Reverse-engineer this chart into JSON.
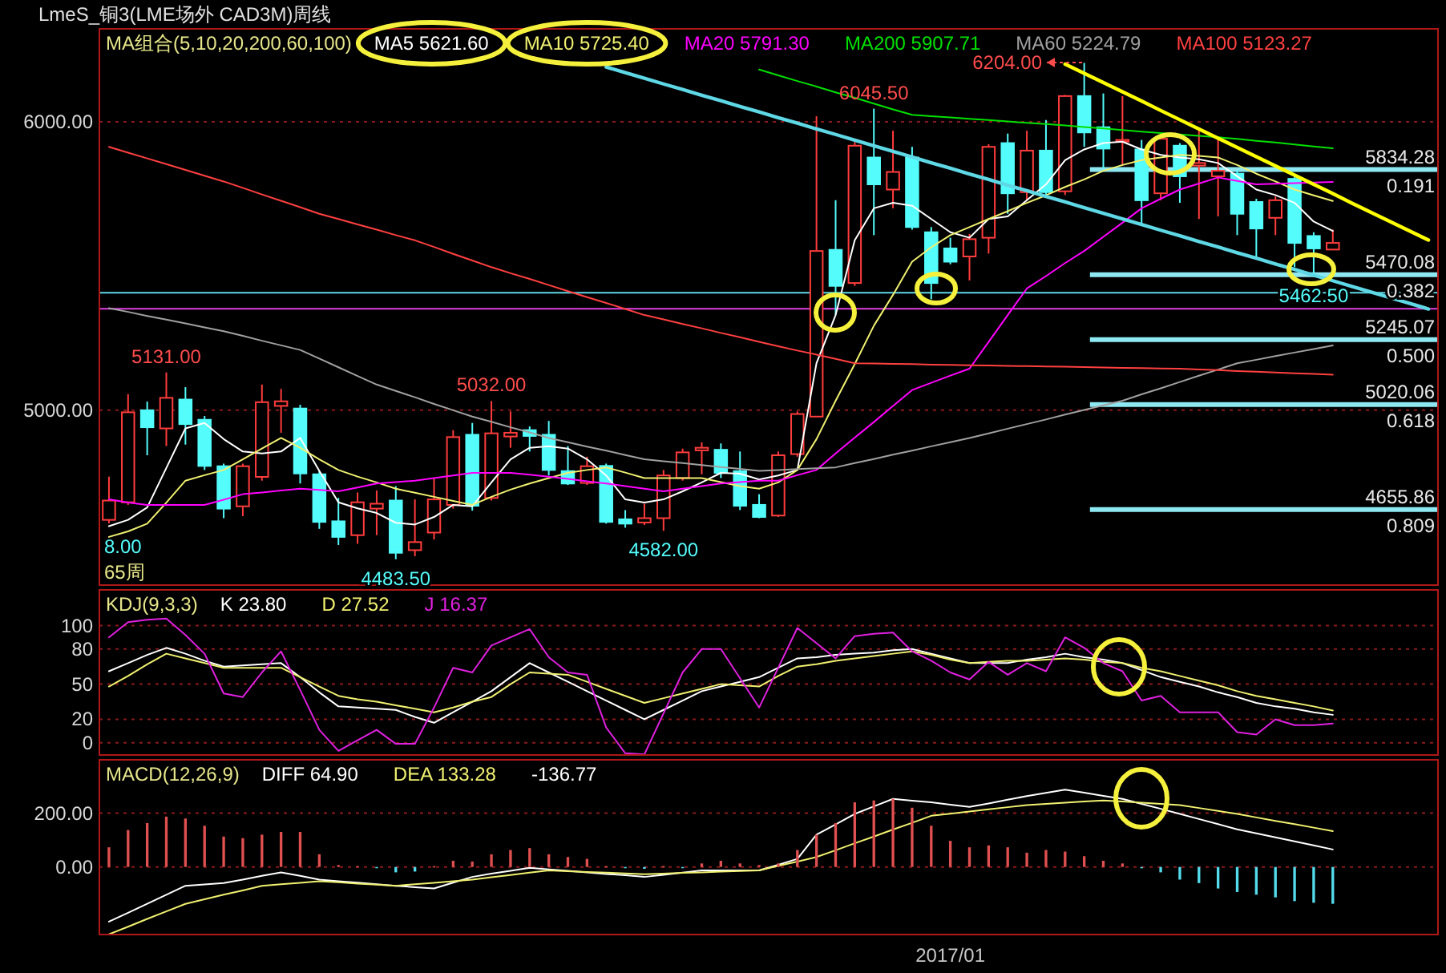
{
  "chart_data": [
    {
      "type": "candlestick",
      "title": "LmeS_铜3(LME场外 CAD3M)周线",
      "legend_title": "MA组合(5,10,20,200,60,100)",
      "grid": "y",
      "tick_labels": "y",
      "ylim": [
        4394,
        6322
      ],
      "yticks": [
        {
          "value": 5000,
          "label": "5000.00"
        },
        {
          "value": 6000,
          "label": "6000.00"
        }
      ],
      "categories": [
        null,
        null,
        null,
        null,
        null,
        null,
        null,
        null,
        null,
        null,
        null,
        null,
        null,
        null,
        null,
        null,
        null,
        null,
        null,
        null,
        null,
        null,
        null,
        null,
        null,
        null,
        null,
        null,
        null,
        null,
        null,
        null,
        null,
        null,
        null,
        null,
        null,
        null,
        null,
        null,
        null,
        null,
        null,
        null,
        null,
        null,
        null,
        null,
        null,
        null,
        null,
        null,
        null,
        null,
        null,
        null,
        null,
        null,
        null,
        null,
        null,
        null,
        null,
        null,
        null,
        null,
        null,
        null,
        null,
        null
      ],
      "ohlc": [
        [
          4620,
          4770,
          4608,
          4687
        ],
        [
          4681,
          5056,
          4672,
          4993
        ],
        [
          5000,
          5030,
          4844,
          4941
        ],
        [
          4937,
          5131,
          4876,
          5043
        ],
        [
          5037,
          5080,
          4881,
          4952
        ],
        [
          4967,
          4980,
          4793,
          4807
        ],
        [
          4806,
          4815,
          4626,
          4659
        ],
        [
          4667,
          4815,
          4633,
          4806
        ],
        [
          4769,
          5089,
          4756,
          5028
        ],
        [
          5015,
          5074,
          4922,
          5031
        ],
        [
          5006,
          5019,
          4746,
          4781
        ],
        [
          4778,
          4789,
          4589,
          4613
        ],
        [
          4615,
          4696,
          4533,
          4561
        ],
        [
          4567,
          4715,
          4537,
          4681
        ],
        [
          4659,
          4722,
          4567,
          4676
        ],
        [
          4687,
          4737,
          4483.5,
          4506
        ],
        [
          4515,
          4691,
          4494,
          4543
        ],
        [
          4576,
          4765,
          4552,
          4691
        ],
        [
          4672,
          4931,
          4659,
          4907
        ],
        [
          4915,
          4956,
          4652,
          4669
        ],
        [
          4696,
          5032,
          4687,
          4920
        ],
        [
          4909,
          4996,
          4870,
          4922
        ],
        [
          4931,
          4944,
          4857,
          4911
        ],
        [
          4915,
          4963,
          4774,
          4793
        ],
        [
          4789,
          4876,
          4741,
          4746
        ],
        [
          4748,
          4839,
          4741,
          4806
        ],
        [
          4807,
          4815,
          4607,
          4613
        ],
        [
          4622,
          4654,
          4593,
          4607
        ],
        [
          4611,
          4676,
          4602,
          4626
        ],
        [
          4626,
          4793,
          4582,
          4774
        ],
        [
          4765,
          4867,
          4756,
          4854
        ],
        [
          4861,
          4889,
          4778,
          4870
        ],
        [
          4863,
          4885,
          4765,
          4783
        ],
        [
          4789,
          4857,
          4654,
          4669
        ],
        [
          4672,
          4709,
          4626,
          4630
        ],
        [
          4635,
          4857,
          4630,
          4844
        ],
        [
          4848,
          4996,
          4839,
          4987
        ],
        [
          4978,
          6019,
          4978,
          5552
        ],
        [
          5556,
          5728,
          5330,
          5431
        ],
        [
          5441,
          5930,
          5431,
          5917
        ],
        [
          5876,
          6045.5,
          5607,
          5783
        ],
        [
          5765,
          5969,
          5700,
          5826
        ],
        [
          5876,
          5913,
          5626,
          5635
        ],
        [
          5617,
          5635,
          5385,
          5441
        ],
        [
          5561,
          5598,
          5506,
          5515
        ],
        [
          5533,
          5611,
          5450,
          5593
        ],
        [
          5598,
          5922,
          5543,
          5913
        ],
        [
          5926,
          5959,
          5681,
          5752
        ],
        [
          5756,
          5969,
          5728,
          5900
        ],
        [
          5900,
          6006,
          5746,
          5756
        ],
        [
          5759,
          6093,
          5746,
          6089
        ],
        [
          6089,
          6204,
          5913,
          5963
        ],
        [
          5981,
          6098,
          5839,
          5907
        ],
        [
          5931,
          6089,
          5848,
          5937
        ],
        [
          5904,
          5937,
          5644,
          5728
        ],
        [
          5752,
          5950,
          5728,
          5941
        ],
        [
          5917,
          5926,
          5719,
          5811
        ],
        [
          5848,
          5969,
          5663,
          5857
        ],
        [
          5811,
          5941,
          5672,
          5830
        ],
        [
          5820,
          5833,
          5607,
          5681
        ],
        [
          5722,
          5733,
          5533,
          5630
        ],
        [
          5667,
          5741,
          5607,
          5728
        ],
        [
          5802,
          5811,
          5496,
          5580
        ],
        [
          5604,
          5617,
          5462.5,
          5561
        ],
        [
          5557,
          5626,
          5556,
          5580
        ],
        null,
        null,
        null,
        null,
        null
      ],
      "colors": [
        "#ff3c3c",
        "#ff3c3c",
        "#54fcfc",
        "#ff3c3c",
        "#54fcfc",
        "#54fcfc",
        "#54fcfc",
        "#ff3c3c",
        "#ff3c3c",
        "#ff3c3c",
        "#54fcfc",
        "#54fcfc",
        "#54fcfc",
        "#ff3c3c",
        "#ff3c3c",
        "#54fcfc",
        "#ff3c3c",
        "#ff3c3c",
        "#ff3c3c",
        "#54fcfc",
        "#ff3c3c",
        "#ff3c3c",
        "#54fcfc",
        "#54fcfc",
        "#54fcfc",
        "#ff3c3c",
        "#54fcfc",
        "#54fcfc",
        "#ff3c3c",
        "#ff3c3c",
        "#ff3c3c",
        "#ff3c3c",
        "#54fcfc",
        "#54fcfc",
        "#54fcfc",
        "#ff3c3c",
        "#ff3c3c",
        "#ff3c3c",
        "#54fcfc",
        "#ff3c3c",
        "#54fcfc",
        "#ff3c3c",
        "#54fcfc",
        "#54fcfc",
        "#54fcfc",
        "#ff3c3c",
        "#ff3c3c",
        "#54fcfc",
        "#ff3c3c",
        "#54fcfc",
        "#ff3c3c",
        "#54fcfc",
        "#54fcfc",
        "#ff3c3c",
        "#54fcfc",
        "#ff3c3c",
        "#54fcfc",
        "#ff3c3c",
        "#ff3c3c",
        "#54fcfc",
        "#54fcfc",
        "#ff3c3c",
        "#54fcfc",
        "#54fcfc",
        "#ff3c3c",
        null,
        null,
        null,
        null,
        null
      ],
      "series": [
        {
          "type": "line",
          "name": "MA5 5621.60",
          "color": "#ffffff",
          "values": [
            4598,
            4620,
            4663,
            4800,
            4937,
            4956,
            4900,
            4857,
            4850,
            4857,
            4904,
            4790,
            4681,
            4660,
            4644,
            4610,
            4604,
            4630,
            4672,
            4667,
            4750,
            4830,
            4870,
            4875,
            4867,
            4830,
            4774,
            4691,
            4680,
            4691,
            4719,
            4750,
            4783,
            4780,
            4760,
            4774,
            4793,
            5163,
            5330,
            5589,
            5700,
            5719,
            5709,
            5663,
            5617,
            5598,
            5663,
            5672,
            5728,
            5783,
            5867,
            5904,
            5926,
            5931,
            5904,
            5885,
            5876,
            5870,
            5857,
            5811,
            5765,
            5746,
            5719,
            5654,
            5621.6,
            null,
            null,
            null,
            null,
            null
          ]
        },
        {
          "type": "line",
          "name": "MA10 5725.40",
          "color": "#f0f070",
          "values": [
            4561,
            4580,
            4607,
            4680,
            4756,
            4775,
            4793,
            4830,
            4867,
            4904,
            4870,
            4830,
            4793,
            4770,
            4750,
            4728,
            4714,
            4700,
            4686,
            4672,
            4700,
            4725,
            4746,
            4765,
            4783,
            4793,
            4802,
            4784,
            4765,
            4765,
            4765,
            4765,
            4751,
            4737,
            4728,
            4750,
            4793,
            4900,
            5033,
            5160,
            5293,
            5400,
            5515,
            5565,
            5607,
            5635,
            5663,
            5690,
            5719,
            5745,
            5774,
            5800,
            5830,
            5850,
            5867,
            5876,
            5885,
            5882,
            5876,
            5850,
            5820,
            5793,
            5765,
            5745,
            5725.4,
            null,
            null,
            null,
            null,
            null
          ]
        },
        {
          "type": "line",
          "name": "MA20 5791.30",
          "color": "#ff00ff",
          "values": [
            4691,
            4680,
            4672,
            4672,
            4672,
            4672,
            4690,
            4709,
            4715,
            4722,
            4728,
            4724,
            4719,
            4732,
            4746,
            4751,
            4756,
            4765,
            4774,
            4783,
            4783,
            4783,
            4777,
            4770,
            4762,
            4754,
            4746,
            4737,
            4728,
            4719,
            4728,
            4737,
            4746,
            4751,
            4756,
            4756,
            4775,
            4793,
            4850,
            4905,
            4959,
            5015,
            5070,
            5095,
            5120,
            5144,
            5237,
            5330,
            5422,
            5465,
            5510,
            5552,
            5601,
            5650,
            5700,
            5733,
            5765,
            5786,
            5807,
            5795,
            5783,
            5785,
            5787,
            5789,
            5791.3,
            null,
            null,
            null,
            null,
            null
          ]
        },
        {
          "type": "line",
          "name": "MA200 5907.71",
          "color": "#00e000",
          "values": [
            null,
            null,
            null,
            null,
            null,
            null,
            null,
            null,
            null,
            null,
            null,
            null,
            null,
            null,
            null,
            null,
            null,
            null,
            null,
            null,
            null,
            null,
            null,
            null,
            null,
            null,
            null,
            null,
            null,
            null,
            null,
            null,
            null,
            null,
            6181,
            6161,
            6141,
            6122,
            6102,
            6083,
            6063,
            6043,
            6024,
            6019,
            6015,
            6010,
            6006,
            6001,
            5996,
            5992,
            5987,
            5982,
            5977,
            5971,
            5966,
            5961,
            5956,
            5951,
            5946,
            5941,
            5934,
            5928,
            5921,
            5914,
            5907.71,
            null,
            null,
            null,
            null,
            null
          ]
        },
        {
          "type": "line",
          "name": "MA60 5224.79",
          "color": "#a0a0a0",
          "values": [
            5354,
            5341,
            5327,
            5314,
            5301,
            5287,
            5274,
            5258,
            5241,
            5225,
            5209,
            5179,
            5149,
            5119,
            5089,
            5067,
            5045,
            5022,
            5000,
            4978,
            4960,
            4941,
            4923,
            4904,
            4889,
            4874,
            4860,
            4845,
            4830,
            4823,
            4817,
            4810,
            4803,
            4797,
            4790,
            4793,
            4796,
            4799,
            4802,
            4817,
            4831,
            4846,
            4860,
            4875,
            4889,
            4904,
            4920,
            4936,
            4952,
            4968,
            4985,
            5001,
            5017,
            5033,
            5055,
            5076,
            5098,
            5120,
            5141,
            5163,
            5175,
            5188,
            5200,
            5212,
            5224.79,
            null,
            null,
            null,
            null,
            null
          ]
        },
        {
          "type": "line",
          "name": "MA100 5123.27",
          "color": "#ff4040",
          "values": [
            5913,
            5893,
            5873,
            5853,
            5833,
            5813,
            5793,
            5771,
            5748,
            5726,
            5704,
            5681,
            5663,
            5644,
            5626,
            5607,
            5589,
            5566,
            5542,
            5519,
            5496,
            5475,
            5455,
            5434,
            5413,
            5392,
            5372,
            5351,
            5330,
            5315,
            5299,
            5284,
            5268,
            5253,
            5237,
            5222,
            5207,
            5193,
            5178,
            5163,
            5162,
            5161,
            5160,
            5158,
            5157,
            5156,
            5155,
            5154,
            5153,
            5152,
            5151,
            5150,
            5148,
            5147,
            5146,
            5145,
            5144,
            5141,
            5139,
            5136,
            5134,
            5131,
            5128,
            5126,
            5123.27,
            null,
            null,
            null,
            null,
            null
          ]
        },
        {
          "type": "line",
          "color": "#ffff00",
          "values": [
            null,
            null,
            null,
            null,
            null,
            null,
            null,
            null,
            null,
            null,
            null,
            null,
            null,
            null,
            null,
            null,
            null,
            null,
            null,
            null,
            null,
            null,
            null,
            null,
            null,
            null,
            null,
            null,
            null,
            null,
            null,
            null,
            null,
            null,
            null,
            null,
            null,
            null,
            null,
            null,
            null,
            null,
            null,
            null,
            null,
            null,
            null,
            null,
            null,
            null,
            6200,
            6168,
            6136,
            6104,
            6072,
            6039,
            6007,
            5975,
            5943,
            5911,
            5879,
            5847,
            5815,
            5783,
            5751,
            5718,
            5686,
            5654,
            5622,
            5590
          ]
        },
        {
          "type": "line",
          "color": "#5fd8e6",
          "values": [
            null,
            null,
            null,
            null,
            null,
            null,
            null,
            null,
            null,
            null,
            null,
            null,
            null,
            null,
            null,
            null,
            null,
            null,
            null,
            null,
            null,
            null,
            null,
            null,
            null,
            null,
            6190,
            6170,
            6151,
            6131,
            6112,
            6092,
            6073,
            6053,
            6034,
            6014,
            5995,
            5975,
            5956,
            5936,
            5917,
            5897,
            5878,
            5858,
            5839,
            5819,
            5800,
            5780,
            5761,
            5741,
            5722,
            5702,
            5683,
            5663,
            5644,
            5624,
            5605,
            5585,
            5566,
            5546,
            5527,
            5507,
            5488,
            5468,
            5449,
            5429,
            5410,
            5390,
            5371,
            5351
          ]
        }
      ],
      "ref_lines": [
        {
          "axis": "y",
          "value": 5407,
          "color": "#5fd8e6"
        },
        {
          "axis": "y",
          "value": 5352,
          "color": "#e040e0"
        },
        {
          "axis": "y",
          "value": 5834.28,
          "label": "5834.28",
          "color": "#8ee8f2"
        },
        {
          "axis": "y",
          "value": 5470.08,
          "label": "5470.08",
          "color": "#8ee8f2"
        },
        {
          "axis": "y",
          "value": 5245.07,
          "label": "5245.07",
          "color": "#8ee8f2"
        },
        {
          "axis": "y",
          "value": 5020.06,
          "label": "5020.06",
          "color": "#8ee8f2"
        },
        {
          "axis": "y",
          "value": 4655.86,
          "label": "4655.86",
          "color": "#8ee8f2"
        }
      ],
      "annotations": [
        {
          "text": "5131.00",
          "y": 5131
        },
        {
          "text": "5032.00",
          "y": 5032
        },
        {
          "text": "4483.50",
          "y": 4483.5
        },
        {
          "text": "4582.00",
          "y": 4582
        },
        {
          "text": "6045.50",
          "y": 6045.5
        },
        {
          "text": "5462.50",
          "y": 5462.5
        },
        {
          "text": "0.191",
          "y": 5834.28
        },
        {
          "text": "0.382",
          "y": 5470.08
        },
        {
          "text": "0.500",
          "y": 5245.07
        },
        {
          "text": "0.618",
          "y": 5020.06
        },
        {
          "text": "0.809",
          "y": 4655.86
        },
        "6204.00",
        "8.00",
        "65周"
      ]
    },
    {
      "type": "line",
      "legend_title": "KDJ(9,3,3)",
      "grid": "y",
      "tick_labels": "y",
      "ylim": [
        -10.5,
        130.5
      ],
      "yticks": [
        0,
        20,
        50,
        80,
        100
      ],
      "categories": [
        null,
        null,
        null,
        null,
        null,
        null,
        null,
        null,
        null,
        null,
        null,
        null,
        null,
        null,
        null,
        null,
        null,
        null,
        null,
        null,
        null,
        null,
        null,
        null,
        null,
        null,
        null,
        null,
        null,
        null,
        null,
        null,
        null,
        null,
        null,
        null,
        null,
        null,
        null,
        null,
        null,
        null,
        null,
        null,
        null,
        null,
        null,
        null,
        null,
        null,
        null,
        null,
        null,
        null,
        null,
        null,
        null,
        null,
        null,
        null,
        null,
        null,
        null,
        null,
        null,
        null,
        null,
        null,
        null,
        null
      ],
      "series": [
        {
          "type": "line",
          "name": "K 23.80",
          "color": "#ffffff",
          "values": [
            61,
            68,
            75,
            81,
            76,
            70,
            65,
            66,
            67,
            68,
            56,
            43,
            31,
            30,
            29,
            28,
            22,
            17,
            26,
            35,
            44,
            56,
            68,
            60,
            52,
            44,
            36,
            28,
            20,
            28,
            36,
            44,
            48,
            52,
            56,
            64,
            72,
            73,
            75,
            76,
            77,
            79,
            80,
            76,
            72,
            68,
            68,
            68,
            71,
            73,
            76,
            73,
            71,
            68,
            62,
            56,
            52,
            48,
            43,
            39,
            34,
            31,
            29,
            26,
            23.8,
            null,
            null,
            null,
            null,
            null
          ]
        },
        {
          "type": "line",
          "name": "D 27.52",
          "color": "#f0f070",
          "values": [
            48,
            57,
            67,
            76,
            72,
            68,
            64,
            64,
            64,
            64,
            56,
            48,
            40,
            37,
            35,
            32,
            29,
            26,
            30,
            35,
            39,
            50,
            60,
            59,
            58,
            52,
            46,
            40,
            34,
            38,
            42,
            46,
            50,
            49,
            48,
            57,
            65,
            67,
            70,
            72,
            74,
            76,
            78,
            75,
            71,
            68,
            69,
            70,
            70,
            71,
            72,
            71,
            69,
            68,
            64,
            61,
            57,
            53,
            49,
            44,
            40,
            37,
            34,
            31,
            27.52,
            null,
            null,
            null,
            null,
            null
          ]
        },
        {
          "type": "line",
          "name": "J 16.37",
          "color": "#e020e0",
          "values": [
            90,
            103,
            105,
            106,
            92,
            76,
            42,
            39,
            60,
            78,
            45,
            11,
            -7,
            2,
            11,
            -1,
            -1,
            30,
            64,
            60,
            83,
            90,
            97,
            73,
            60,
            58,
            13,
            -9,
            -10,
            25,
            60,
            80,
            80,
            55,
            30,
            64,
            98,
            85,
            72,
            91,
            93,
            94,
            78,
            70,
            60,
            54,
            69,
            58,
            68,
            61,
            90,
            81,
            68,
            61,
            36,
            40,
            26,
            26,
            26,
            9,
            7,
            20,
            15,
            15,
            16.37,
            null,
            null,
            null,
            null,
            null
          ]
        }
      ]
    },
    {
      "type": "line",
      "legend_title": "MACD(12,26,9)",
      "grid": "y",
      "ylim": [
        -251,
        398
      ],
      "yticks": [
        {
          "value": 0,
          "label": "0.00"
        },
        {
          "value": 200,
          "label": "200.00"
        }
      ],
      "categories": [
        null,
        null,
        null,
        null,
        null,
        null,
        null,
        null,
        null,
        null,
        null,
        null,
        null,
        null,
        null,
        null,
        null,
        null,
        null,
        null,
        null,
        null,
        null,
        null,
        null,
        null,
        null,
        null,
        null,
        null,
        null,
        null,
        null,
        null,
        null,
        null,
        null,
        null,
        null,
        null,
        null,
        null,
        null,
        null,
        "2017/01",
        null,
        null,
        null,
        null,
        null,
        null,
        null,
        null,
        null,
        null,
        null,
        null,
        null,
        null,
        null,
        null,
        null,
        null,
        null,
        null,
        null,
        null,
        null,
        null,
        null
      ],
      "series": [
        {
          "type": "line",
          "name": "DIFF 64.90",
          "color": "#ffffff",
          "values": [
            -203,
            -170,
            -137,
            -103,
            -70,
            -65,
            -60,
            -47,
            -33,
            -20,
            -33,
            -47,
            -53,
            -58,
            -64,
            -70,
            -75,
            -80,
            -58,
            -37,
            -25,
            -14,
            -3,
            -9,
            -14,
            -20,
            -26,
            -31,
            -37,
            -29,
            -21,
            -13,
            -13,
            -13,
            -13,
            8,
            30,
            120,
            158,
            197,
            225,
            253,
            246,
            240,
            231,
            223,
            236,
            250,
            263,
            275,
            287,
            276,
            264,
            253,
            234,
            216,
            197,
            178,
            159,
            140,
            125,
            110,
            95,
            80,
            64.9,
            null,
            null,
            null,
            null,
            null
          ]
        },
        {
          "type": "line",
          "name": "DEA 133.28",
          "color": "#f0f070",
          "values": [
            -250,
            -222,
            -193,
            -165,
            -137,
            -120,
            -103,
            -87,
            -70,
            -64,
            -59,
            -53,
            -57,
            -62,
            -66,
            -70,
            -64,
            -59,
            -53,
            -47,
            -38,
            -30,
            -21,
            -13,
            -16,
            -19,
            -21,
            -24,
            -27,
            -25,
            -22,
            -20,
            -17,
            -15,
            -13,
            4,
            20,
            37,
            62,
            88,
            113,
            139,
            164,
            190,
            198,
            206,
            214,
            222,
            230,
            234,
            239,
            243,
            247,
            243,
            239,
            234,
            230,
            219,
            208,
            197,
            184,
            171,
            159,
            146,
            133.28,
            null,
            null,
            null,
            null,
            null
          ]
        },
        {
          "type": "bar",
          "values": [
            73,
            137,
            163,
            187,
            180,
            153,
            113,
            107,
            120,
            130,
            130,
            47,
            7,
            3,
            -3,
            -20,
            -17,
            3,
            23,
            20,
            47,
            63,
            70,
            47,
            37,
            30,
            3,
            -3,
            -7,
            3,
            -3,
            13,
            23,
            13,
            7,
            13,
            63,
            120,
            163,
            240,
            247,
            253,
            220,
            153,
            97,
            73,
            80,
            73,
            53,
            63,
            57,
            40,
            23,
            13,
            -3,
            -20,
            -47,
            -60,
            -80,
            -93,
            -103,
            -113,
            -127,
            -133,
            -136.77,
            null,
            null,
            null,
            null,
            null
          ],
          "colors": [
            "#e05050",
            "#e05050",
            "#e05050",
            "#e05050",
            "#e05050",
            "#e05050",
            "#e05050",
            "#e05050",
            "#e05050",
            "#e05050",
            "#e05050",
            "#e05050",
            "#e05050",
            "#e05050",
            "#54dcec",
            "#54dcec",
            "#54dcec",
            "#e05050",
            "#e05050",
            "#e05050",
            "#e05050",
            "#e05050",
            "#e05050",
            "#e05050",
            "#e05050",
            "#e05050",
            "#e05050",
            "#54dcec",
            "#54dcec",
            "#e05050",
            "#54dcec",
            "#e05050",
            "#e05050",
            "#e05050",
            "#e05050",
            "#e05050",
            "#e05050",
            "#e05050",
            "#e05050",
            "#e05050",
            "#e05050",
            "#e05050",
            "#e05050",
            "#e05050",
            "#e05050",
            "#e05050",
            "#e05050",
            "#e05050",
            "#e05050",
            "#e05050",
            "#e05050",
            "#e05050",
            "#e05050",
            "#e05050",
            "#54dcec",
            "#54dcec",
            "#54dcec",
            "#54dcec",
            "#54dcec",
            "#54dcec",
            "#54dcec",
            "#54dcec",
            "#54dcec",
            "#54dcec",
            "#54dcec",
            null,
            null,
            null,
            null,
            null
          ]
        }
      ],
      "annotations": [
        "-136.77"
      ]
    }
  ]
}
